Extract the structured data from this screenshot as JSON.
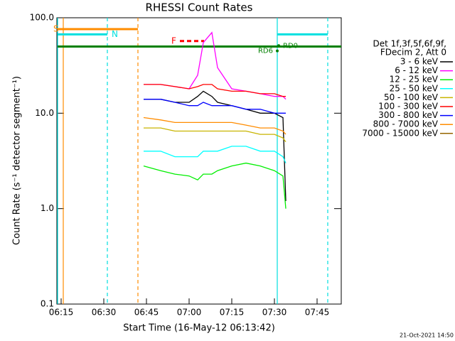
{
  "chart_data": {
    "type": "line",
    "title": "RHESSI Count Rates",
    "x_label": "Start Time (16-May-12 06:13:42)",
    "y_label": "Count Rate (s⁻¹ detector segment⁻¹)",
    "legend_header": [
      "Det 1f,3f,5f,6f,9f,",
      "FDecim 2, Att 0"
    ],
    "footer": "21-Oct-2021 14:50",
    "log_y": true,
    "xlim": [
      373.5,
      473.5
    ],
    "xticks": [
      {
        "value": 375,
        "label": "06:15"
      },
      {
        "value": 390,
        "label": "06:30"
      },
      {
        "value": 405,
        "label": "06:45"
      },
      {
        "value": 420,
        "label": "07:00"
      },
      {
        "value": 435,
        "label": "07:15"
      },
      {
        "value": 450,
        "label": "07:30"
      },
      {
        "value": 465,
        "label": "07:45"
      }
    ],
    "ylim": [
      0.1,
      100
    ],
    "yticks": [
      0.1,
      {
        "value": 1,
        "label": "1.0"
      },
      {
        "value": 10,
        "label": "10.0"
      },
      {
        "value": 100,
        "label": "100.0"
      }
    ],
    "x": [
      404,
      410,
      415,
      420,
      423,
      425,
      428,
      430,
      435,
      440,
      445,
      450,
      453,
      454
    ],
    "series": [
      {
        "name": "3 - 6 keV",
        "color": "#000000",
        "values": [
          14,
          14,
          13,
          13,
          15,
          17,
          15,
          13,
          12,
          11,
          10,
          10,
          9,
          1.2
        ]
      },
      {
        "name": "6 - 12 keV",
        "color": "#ff00ff",
        "values": [
          20,
          20,
          19,
          18,
          25,
          55,
          70,
          30,
          18,
          17,
          16,
          15,
          15,
          14
        ]
      },
      {
        "name": "12 - 25 keV",
        "color": "#00ee00",
        "values": [
          2.8,
          2.5,
          2.3,
          2.2,
          2,
          2.3,
          2.3,
          2.5,
          2.8,
          3,
          2.8,
          2.5,
          2.2,
          1
        ]
      },
      {
        "name": "25 - 50 keV",
        "color": "#00ffff",
        "values": [
          4,
          4,
          3.5,
          3.5,
          3.5,
          4,
          4,
          4,
          4.5,
          4.5,
          4,
          4,
          3.5,
          3
        ]
      },
      {
        "name": "50 - 100 keV",
        "color": "#c8b400",
        "values": [
          7,
          7,
          6.5,
          6.5,
          6.5,
          6.5,
          6.5,
          6.5,
          6.5,
          6.5,
          6,
          6,
          5.5,
          5
        ]
      },
      {
        "name": "100 - 300 keV",
        "color": "#ff0000",
        "values": [
          20,
          20,
          19,
          18,
          19,
          20,
          20,
          18,
          17,
          17,
          16,
          16,
          15,
          15
        ]
      },
      {
        "name": "300 - 800 keV",
        "color": "#0000ff",
        "values": [
          14,
          14,
          13,
          12,
          12,
          13,
          12,
          12,
          12,
          11,
          11,
          10,
          10,
          10
        ]
      },
      {
        "name": "800 - 7000 keV",
        "color": "#ff8c00",
        "values": [
          9,
          8.5,
          8,
          8,
          8,
          8,
          8,
          8,
          8,
          7.5,
          7,
          7,
          6.5,
          6
        ]
      },
      {
        "name": "7000 - 15000 keV",
        "color": "#966400",
        "values": [
          null,
          null,
          null,
          null,
          null,
          null,
          null,
          null,
          null,
          null,
          null,
          null,
          null,
          null
        ]
      }
    ],
    "vlines": [
      {
        "x": 373.75,
        "color": "#00e0e0",
        "dashed": false
      },
      {
        "x": 375.75,
        "color": "#ff8c00",
        "dashed": false
      },
      {
        "x": 391.25,
        "color": "#00e0e0",
        "dashed": true
      },
      {
        "x": 402,
        "color": "#ff8c00",
        "dashed": true
      },
      {
        "x": 451,
        "color": "#00e0e0",
        "dashed": false
      },
      {
        "x": 468.75,
        "color": "#00e0e0",
        "dashed": true
      }
    ],
    "bars": [
      {
        "text": "S",
        "color": "#ff8c00",
        "x": [
          373.75,
          402
        ],
        "y": 76,
        "dashed": false
      },
      {
        "text": "N",
        "color": "#00e0e0",
        "x": [
          373.75,
          391.25
        ],
        "y": 67,
        "dashed": false
      },
      {
        "color": "#00e0e0",
        "x": [
          451,
          468.75
        ],
        "y": 67,
        "dashed": false
      },
      {
        "color": "#008000",
        "x": [
          373.75,
          473.5
        ],
        "y": 50,
        "dashed": false
      },
      {
        "text": "F",
        "color": "#ff0000",
        "x": [
          416.75,
          425.25
        ],
        "y": 57,
        "dashed": true
      }
    ],
    "points": [
      {
        "text": "RD6",
        "color": "#008000",
        "x": 451,
        "y": 45
      },
      {
        "text": "RD0",
        "color": "#008000",
        "x": 451.5,
        "y": 51
      }
    ]
  }
}
